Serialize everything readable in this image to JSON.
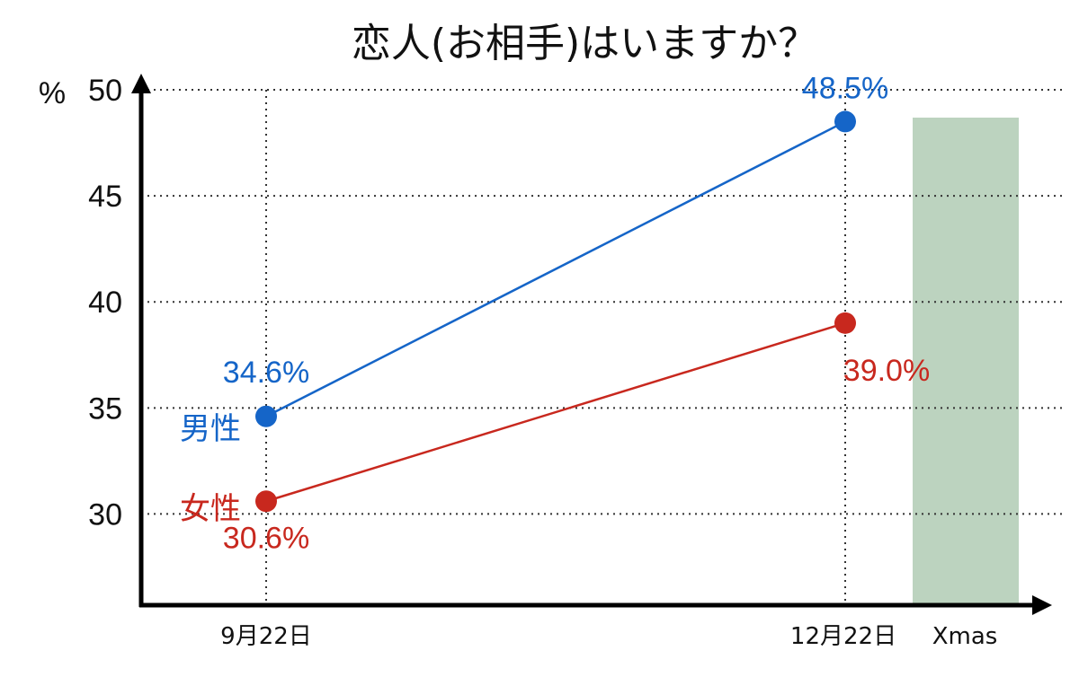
{
  "chart_data": {
    "type": "line",
    "title": "恋人(お相手)はいますか？",
    "ylabel": "%",
    "categories": [
      "9月22日",
      "12月22日"
    ],
    "yticks": [
      30,
      35,
      40,
      45,
      50
    ],
    "ylim": [
      25.7,
      50
    ],
    "grid": true,
    "series": [
      {
        "name": "男性",
        "values": [
          34.6,
          48.5
        ],
        "labels": [
          "34.6%",
          "48.5%"
        ],
        "color": "#1565c8"
      },
      {
        "name": "女性",
        "values": [
          30.6,
          39.0
        ],
        "labels": [
          "30.6%",
          "39.0%"
        ],
        "color": "#c8281e"
      }
    ],
    "highlight": {
      "label": "Xmas",
      "color": "#bcd3bf",
      "label_color": "#1e8a2e"
    }
  }
}
